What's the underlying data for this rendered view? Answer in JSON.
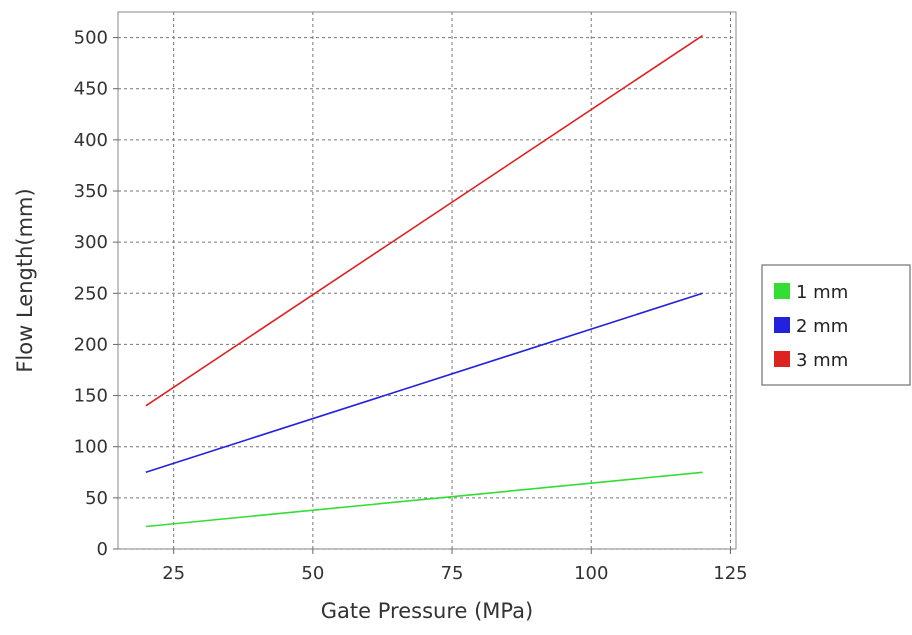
{
  "chart_data": {
    "type": "line",
    "title": "",
    "xlabel": "Gate Pressure (MPa)",
    "ylabel": "Flow Length(mm)",
    "xlim": [
      15,
      126
    ],
    "ylim": [
      0,
      525
    ],
    "xticks": [
      25,
      50,
      75,
      100,
      125
    ],
    "yticks": [
      0,
      50,
      100,
      150,
      200,
      250,
      300,
      350,
      400,
      450,
      500
    ],
    "grid": true,
    "legend_position": "right",
    "x": [
      20,
      120
    ],
    "series": [
      {
        "name": "1 mm",
        "color": "#33dd33",
        "values": [
          22,
          75
        ]
      },
      {
        "name": "2 mm",
        "color": "#2222dd",
        "values": [
          75,
          250
        ]
      },
      {
        "name": "3 mm",
        "color": "#dd2222",
        "values": [
          140,
          502
        ]
      }
    ]
  }
}
